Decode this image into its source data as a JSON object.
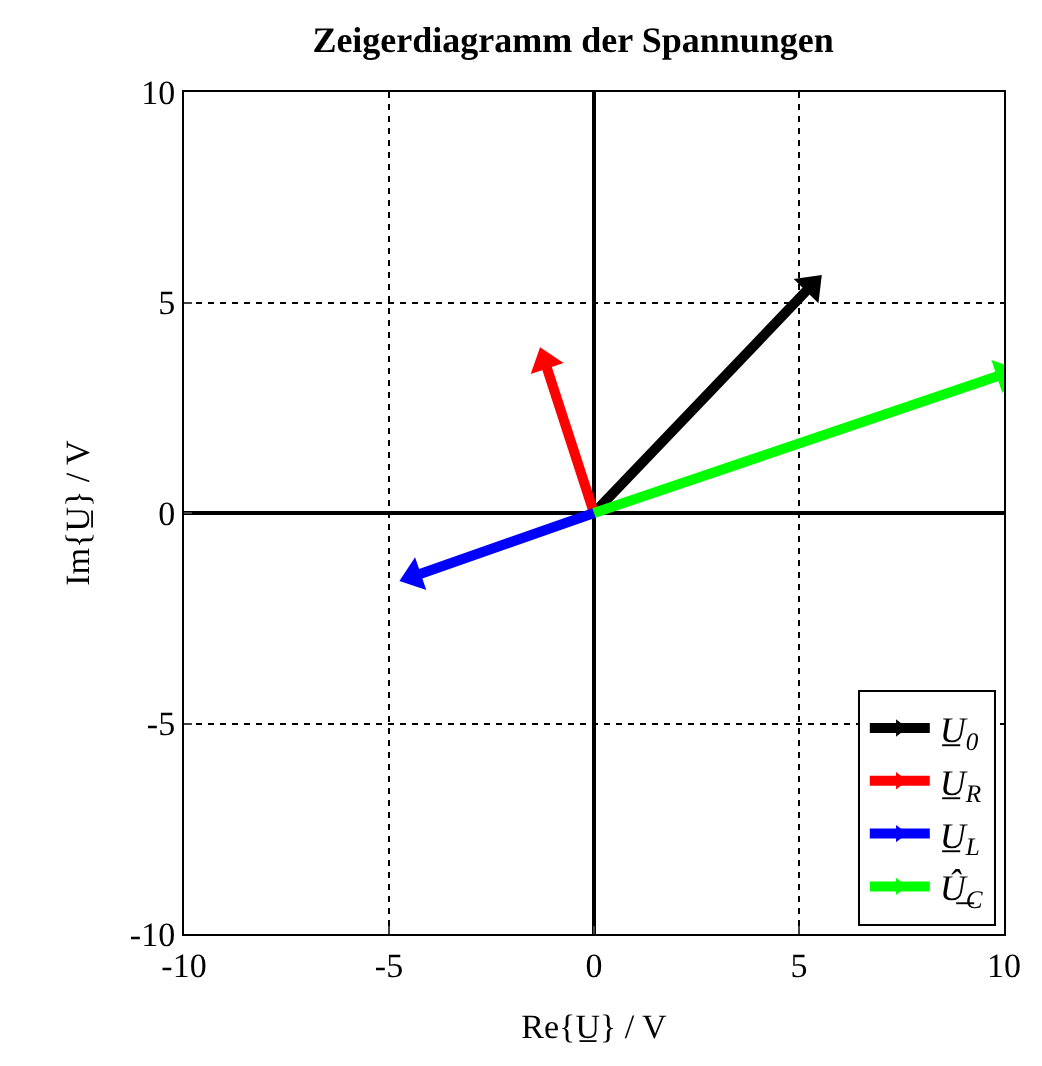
{
  "chart_data": {
    "type": "line",
    "title": "Zeigerdiagramm der Spannungen",
    "xlabel": "Re{U̲} / V",
    "ylabel": "Im{U̲} / V",
    "series": [
      {
        "name": "U̲$_{0}$",
        "color": "#000000",
        "x": [
          0,
          5.3
        ],
        "values": [
          0,
          5.4
        ]
      },
      {
        "name": "U̲$_{R}$",
        "color": "#ff0000",
        "x": [
          0,
          -1.2
        ],
        "values": [
          0,
          3.6
        ]
      },
      {
        "name": "U̲$_{L}$",
        "color": "#0000ff",
        "x": [
          0,
          -4.4
        ],
        "values": [
          0,
          -1.5
        ]
      },
      {
        "name": "Û̲$_{C}$",
        "color": "#00ff00",
        "x": [
          0,
          10
        ],
        "values": [
          0,
          3.3
        ]
      }
    ],
    "xlim": [
      -10,
      10
    ],
    "xticks": [
      -10,
      -5,
      0,
      5,
      10
    ],
    "ylim": [
      -10,
      10
    ],
    "yticks": [
      -10,
      -5,
      0,
      5,
      10
    ],
    "grid": true,
    "legend": "bottom right",
    "marker": "triangle",
    "line_style": "solid"
  }
}
